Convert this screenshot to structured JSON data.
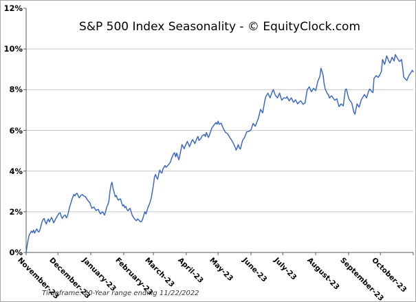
{
  "chart_data": {
    "type": "line",
    "title": "S&P 500 Index Seasonality - © EquityClock.com",
    "footnote": "Timeframe: 20-Year range ending 11/22/2022",
    "x_tick_labels": [
      "November-23",
      "December-23",
      "January-23",
      "February-23",
      "March-23",
      "April-23",
      "May-23",
      "June-23",
      "July-23",
      "August-23",
      "September-23",
      "October-23"
    ],
    "month_start_days": [
      0,
      30,
      61,
      92,
      120,
      151,
      181,
      212,
      242,
      273,
      304,
      334,
      365
    ],
    "y_tick_labels": [
      "12%",
      "10%",
      "8%",
      "6%",
      "4%",
      "2%",
      "0%"
    ],
    "y_tick_values": [
      12,
      10,
      8,
      6,
      4,
      2,
      0
    ],
    "ylim": [
      0,
      12
    ],
    "xlim_days": [
      0,
      365
    ],
    "y_unit": "%",
    "grid": "horizontal-only",
    "legend_position": "none",
    "line_color": "#3c68c4",
    "gridline_color": "#c6c6c6",
    "axis_color": "#5a5a5a",
    "series": [
      {
        "points": [
          [
            0,
            0
          ],
          [
            1,
            0.35
          ],
          [
            2,
            0.65
          ],
          [
            3,
            0.88
          ],
          [
            4,
            0.95
          ],
          [
            5,
            1.05
          ],
          [
            6,
            0.98
          ],
          [
            7,
            1.1
          ],
          [
            8,
            0.95
          ],
          [
            9,
            1.05
          ],
          [
            10,
            1.16
          ],
          [
            11,
            1.05
          ],
          [
            12,
            1.0
          ],
          [
            13,
            1.12
          ],
          [
            14,
            1.3
          ],
          [
            15,
            1.5
          ],
          [
            16,
            1.62
          ],
          [
            17,
            1.67
          ],
          [
            18,
            1.5
          ],
          [
            19,
            1.4
          ],
          [
            20,
            1.55
          ],
          [
            21,
            1.65
          ],
          [
            22,
            1.5
          ],
          [
            23,
            1.62
          ],
          [
            24,
            1.72
          ],
          [
            25,
            1.6
          ],
          [
            26,
            1.45
          ],
          [
            27,
            1.55
          ],
          [
            28,
            1.67
          ],
          [
            29,
            1.75
          ],
          [
            30,
            1.84
          ],
          [
            31,
            1.92
          ],
          [
            32,
            1.95
          ],
          [
            33,
            1.8
          ],
          [
            34,
            1.67
          ],
          [
            35,
            1.76
          ],
          [
            36,
            1.82
          ],
          [
            37,
            1.84
          ],
          [
            38,
            1.7
          ],
          [
            39,
            1.8
          ],
          [
            40,
            2.0
          ],
          [
            41,
            2.23
          ],
          [
            42,
            2.4
          ],
          [
            43,
            2.57
          ],
          [
            44,
            2.72
          ],
          [
            45,
            2.85
          ],
          [
            46,
            2.78
          ],
          [
            47,
            2.88
          ],
          [
            48,
            2.91
          ],
          [
            49,
            2.8
          ],
          [
            50,
            2.68
          ],
          [
            51,
            2.76
          ],
          [
            52,
            2.82
          ],
          [
            53,
            2.85
          ],
          [
            54,
            2.79
          ],
          [
            55,
            2.76
          ],
          [
            56,
            2.74
          ],
          [
            57,
            2.64
          ],
          [
            58,
            2.57
          ],
          [
            59,
            2.5
          ],
          [
            60,
            2.46
          ],
          [
            61,
            2.3
          ],
          [
            62,
            2.17
          ],
          [
            63,
            2.21
          ],
          [
            64,
            2.23
          ],
          [
            65,
            2.14
          ],
          [
            66,
            2.06
          ],
          [
            67,
            2.1
          ],
          [
            68,
            2.12
          ],
          [
            69,
            2.0
          ],
          [
            70,
            1.89
          ],
          [
            71,
            1.95
          ],
          [
            72,
            2.0
          ],
          [
            73,
            1.92
          ],
          [
            74,
            1.84
          ],
          [
            75,
            2.02
          ],
          [
            76,
            2.23
          ],
          [
            77,
            2.35
          ],
          [
            78,
            2.5
          ],
          [
            79,
            3.0
          ],
          [
            80,
            3.3
          ],
          [
            81,
            3.45
          ],
          [
            82,
            3.13
          ],
          [
            83,
            2.95
          ],
          [
            84,
            2.74
          ],
          [
            85,
            2.8
          ],
          [
            86,
            2.65
          ],
          [
            87,
            2.57
          ],
          [
            88,
            2.62
          ],
          [
            89,
            2.63
          ],
          [
            90,
            2.45
          ],
          [
            91,
            2.29
          ],
          [
            92,
            2.34
          ],
          [
            93,
            2.2
          ],
          [
            94,
            2.26
          ],
          [
            95,
            2.12
          ],
          [
            96,
            2.05
          ],
          [
            97,
            2.12
          ],
          [
            98,
            2.17
          ],
          [
            99,
            2.0
          ],
          [
            100,
            1.84
          ],
          [
            101,
            1.74
          ],
          [
            102,
            1.67
          ],
          [
            103,
            1.6
          ],
          [
            104,
            1.56
          ],
          [
            105,
            1.65
          ],
          [
            106,
            1.61
          ],
          [
            107,
            1.55
          ],
          [
            108,
            1.5
          ],
          [
            109,
            1.53
          ],
          [
            110,
            1.67
          ],
          [
            111,
            1.84
          ],
          [
            112,
            2.0
          ],
          [
            113,
            1.89
          ],
          [
            114,
            2.06
          ],
          [
            115,
            2.23
          ],
          [
            116,
            2.34
          ],
          [
            117,
            2.5
          ],
          [
            118,
            2.68
          ],
          [
            119,
            3.0
          ],
          [
            120,
            3.3
          ],
          [
            121,
            3.7
          ],
          [
            122,
            3.83
          ],
          [
            123,
            3.68
          ],
          [
            124,
            3.6
          ],
          [
            125,
            3.85
          ],
          [
            126,
            4.05
          ],
          [
            127,
            3.94
          ],
          [
            128,
            3.9
          ],
          [
            129,
            4.1
          ],
          [
            131,
            4.27
          ],
          [
            132,
            4.18
          ],
          [
            134,
            4.3
          ],
          [
            136,
            4.44
          ],
          [
            137,
            4.6
          ],
          [
            139,
            4.85
          ],
          [
            140,
            4.9
          ],
          [
            141,
            4.7
          ],
          [
            142,
            4.88
          ],
          [
            144,
            4.55
          ],
          [
            145,
            4.8
          ],
          [
            146,
            5.05
          ],
          [
            147,
            5.3
          ],
          [
            149,
            5.1
          ],
          [
            151,
            5.35
          ],
          [
            152,
            5.46
          ],
          [
            154,
            5.2
          ],
          [
            156,
            5.45
          ],
          [
            157,
            5.55
          ],
          [
            159,
            5.35
          ],
          [
            161,
            5.6
          ],
          [
            162,
            5.7
          ],
          [
            163,
            5.5
          ],
          [
            165,
            5.62
          ],
          [
            166,
            5.73
          ],
          [
            168,
            5.8
          ],
          [
            169,
            5.7
          ],
          [
            170,
            5.9
          ],
          [
            171,
            5.75
          ],
          [
            172,
            5.65
          ],
          [
            174,
            5.95
          ],
          [
            175,
            6.1
          ],
          [
            177,
            6.25
          ],
          [
            178,
            6.32
          ],
          [
            179,
            6.38
          ],
          [
            180,
            6.3
          ],
          [
            181,
            6.45
          ],
          [
            182,
            6.3
          ],
          [
            184,
            6.35
          ],
          [
            185,
            6.2
          ],
          [
            186,
            6.08
          ],
          [
            188,
            5.9
          ],
          [
            190,
            5.83
          ],
          [
            192,
            5.65
          ],
          [
            194,
            5.5
          ],
          [
            196,
            5.3
          ],
          [
            197,
            5.18
          ],
          [
            198,
            5.03
          ],
          [
            199,
            5.15
          ],
          [
            200,
            5.3
          ],
          [
            201,
            5.14
          ],
          [
            202,
            5.08
          ],
          [
            204,
            5.5
          ],
          [
            206,
            5.65
          ],
          [
            208,
            5.93
          ],
          [
            210,
            5.95
          ],
          [
            212,
            6.02
          ],
          [
            214,
            6.34
          ],
          [
            216,
            6.2
          ],
          [
            219,
            6.6
          ],
          [
            221,
            7.03
          ],
          [
            223,
            6.86
          ],
          [
            225,
            7.45
          ],
          [
            226,
            7.66
          ],
          [
            228,
            7.83
          ],
          [
            230,
            7.6
          ],
          [
            232,
            7.9
          ],
          [
            233,
            8.0
          ],
          [
            235,
            7.72
          ],
          [
            237,
            7.6
          ],
          [
            239,
            7.83
          ],
          [
            241,
            7.48
          ],
          [
            243,
            7.6
          ],
          [
            245,
            7.58
          ],
          [
            246,
            7.66
          ],
          [
            248,
            7.45
          ],
          [
            250,
            7.6
          ],
          [
            252,
            7.38
          ],
          [
            254,
            7.5
          ],
          [
            256,
            7.3
          ],
          [
            258,
            7.42
          ],
          [
            259,
            7.45
          ],
          [
            261,
            7.28
          ],
          [
            263,
            7.35
          ],
          [
            265,
            8.0
          ],
          [
            267,
            8.14
          ],
          [
            269,
            7.9
          ],
          [
            271,
            8.07
          ],
          [
            273,
            7.95
          ],
          [
            275,
            8.41
          ],
          [
            277,
            8.66
          ],
          [
            278,
            9.05
          ],
          [
            279,
            8.9
          ],
          [
            280,
            8.7
          ],
          [
            281,
            8.3
          ],
          [
            282,
            8.03
          ],
          [
            284,
            7.8
          ],
          [
            285,
            7.76
          ],
          [
            286,
            7.59
          ],
          [
            288,
            7.7
          ],
          [
            290,
            7.55
          ],
          [
            291,
            7.48
          ],
          [
            293,
            7.55
          ],
          [
            295,
            7.17
          ],
          [
            297,
            7.3
          ],
          [
            299,
            7.2
          ],
          [
            300,
            7.6
          ],
          [
            301,
            8.0
          ],
          [
            302,
            8.03
          ],
          [
            304,
            7.6
          ],
          [
            305,
            7.48
          ],
          [
            307,
            7.35
          ],
          [
            309,
            6.9
          ],
          [
            310,
            6.79
          ],
          [
            312,
            7.3
          ],
          [
            314,
            7.14
          ],
          [
            316,
            7.5
          ],
          [
            317,
            7.59
          ],
          [
            319,
            7.76
          ],
          [
            321,
            7.6
          ],
          [
            323,
            7.93
          ],
          [
            324,
            8.03
          ],
          [
            326,
            7.9
          ],
          [
            327,
            7.86
          ],
          [
            328,
            8.55
          ],
          [
            330,
            8.69
          ],
          [
            332,
            8.6
          ],
          [
            334,
            8.79
          ],
          [
            335,
            8.9
          ],
          [
            336,
            9.48
          ],
          [
            338,
            9.24
          ],
          [
            340,
            9.66
          ],
          [
            342,
            9.4
          ],
          [
            343,
            9.31
          ],
          [
            345,
            9.59
          ],
          [
            347,
            9.41
          ],
          [
            348,
            9.72
          ],
          [
            350,
            9.55
          ],
          [
            352,
            9.38
          ],
          [
            354,
            9.48
          ],
          [
            355,
            9.1
          ],
          [
            356,
            8.62
          ],
          [
            358,
            8.5
          ],
          [
            359,
            8.45
          ],
          [
            361,
            8.7
          ],
          [
            363,
            8.85
          ],
          [
            364,
            8.95
          ],
          [
            365,
            8.88
          ]
        ]
      }
    ]
  }
}
